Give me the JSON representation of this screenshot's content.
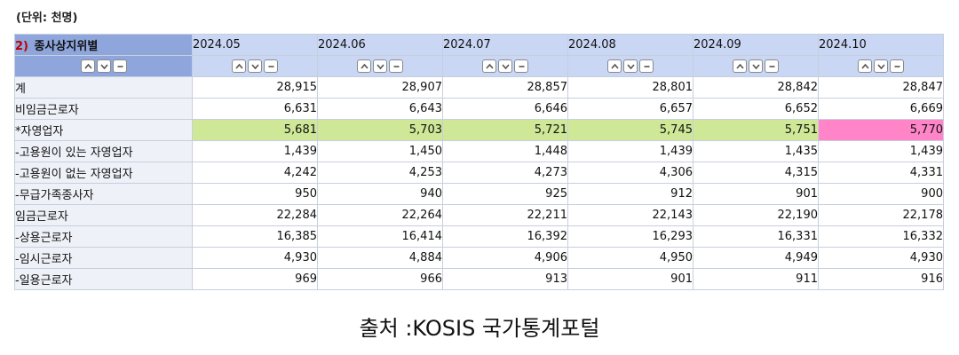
{
  "unit_label": "(단위: 천명)",
  "table": {
    "corner_num": "2)",
    "corner_label": "종사상지위별",
    "periods": [
      "2024.05",
      "2024.06",
      "2024.07",
      "2024.08",
      "2024.09",
      "2024.10"
    ],
    "controls": {
      "up_icon": "chevron-up-icon",
      "down_icon": "chevron-down-icon",
      "minus_icon": "minus-icon"
    },
    "rows": [
      {
        "label": "계",
        "values": [
          "28,915",
          "28,907",
          "28,857",
          "28,801",
          "28,842",
          "28,847"
        ]
      },
      {
        "label": "비임금근로자",
        "values": [
          "6,631",
          "6,643",
          "6,646",
          "6,657",
          "6,652",
          "6,669"
        ]
      },
      {
        "label": "*자영업자",
        "values": [
          "5,681",
          "5,703",
          "5,721",
          "5,745",
          "5,751",
          "5,770"
        ]
      },
      {
        "label": "-고용원이 있는 자영업자",
        "values": [
          "1,439",
          "1,450",
          "1,448",
          "1,439",
          "1,435",
          "1,439"
        ]
      },
      {
        "label": "-고용원이 없는 자영업자",
        "values": [
          "4,242",
          "4,253",
          "4,273",
          "4,306",
          "4,315",
          "4,331"
        ]
      },
      {
        "label": "-무급가족종사자",
        "values": [
          "950",
          "940",
          "925",
          "912",
          "901",
          "900"
        ]
      },
      {
        "label": "임금근로자",
        "values": [
          "22,284",
          "22,264",
          "22,211",
          "22,143",
          "22,190",
          "22,178"
        ]
      },
      {
        "label": "-상용근로자",
        "values": [
          "16,385",
          "16,414",
          "16,392",
          "16,293",
          "16,331",
          "16,332"
        ]
      },
      {
        "label": "-임시근로자",
        "values": [
          "4,930",
          "4,884",
          "4,906",
          "4,950",
          "4,949",
          "4,930"
        ]
      },
      {
        "label": "-일용근로자",
        "values": [
          "969",
          "966",
          "913",
          "901",
          "911",
          "916"
        ]
      }
    ],
    "highlight": {
      "green": "#cfe898",
      "pink": "#ff85c8"
    }
  },
  "source": "출처 :KOSIS 국가통계포털"
}
